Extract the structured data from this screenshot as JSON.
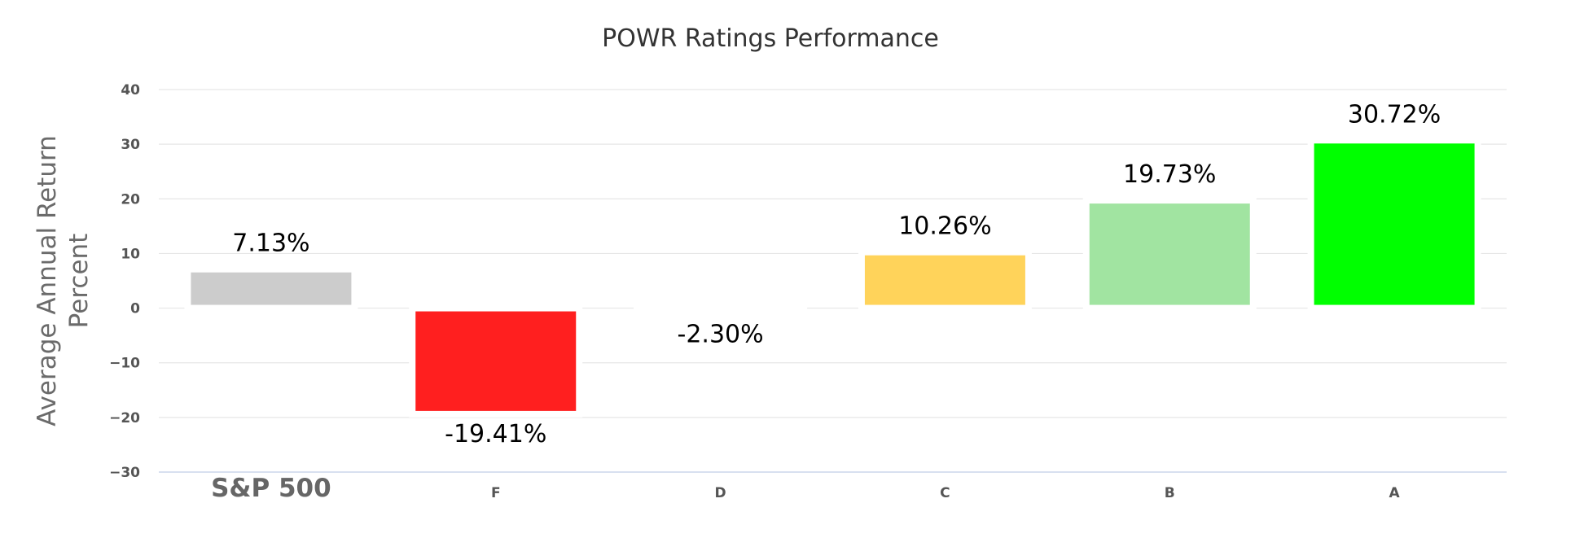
{
  "chart_data": {
    "type": "bar",
    "title": "POWR Ratings Performance",
    "ylabel_lines": [
      "Average Annual Return",
      "Percent"
    ],
    "xlabel": "",
    "ylim": [
      -30,
      40
    ],
    "yticks": [
      40,
      30,
      20,
      10,
      0,
      -10,
      -20,
      -30
    ],
    "grid": true,
    "legend": "none",
    "categories": [
      "S&P 500",
      "F",
      "D",
      "C",
      "B",
      "A"
    ],
    "values": [
      7.13,
      -19.41,
      -2.3,
      10.26,
      19.73,
      30.72
    ],
    "data_labels": [
      "7.13%",
      "-19.41%",
      "-2.30%",
      "10.26%",
      "19.73%",
      "30.72%"
    ],
    "colors": [
      "#cccccc",
      "#ff1f1f",
      "#ffffff",
      "#ffd35a",
      "#a1e4a1",
      "#00ff00"
    ]
  }
}
